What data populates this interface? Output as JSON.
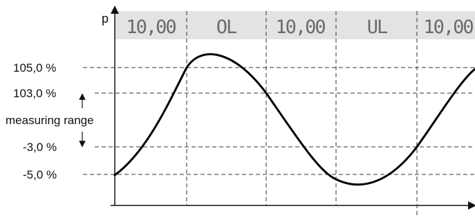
{
  "y_axis_label": "p",
  "display_bar": {
    "background": "#e3e3e3",
    "segments": [
      "10,00",
      "OL",
      "10,00",
      "UL",
      "10,00"
    ]
  },
  "levels": {
    "upper_limit": "105,0 %",
    "upper_range": "103,0 %",
    "lower_range": "-3,0 %",
    "lower_limit": "-5,0 %"
  },
  "measuring_range_label": "measuring range",
  "colors": {
    "curve": "#000000",
    "dashed": "#333333",
    "display_text": "#6a6a6a"
  }
}
